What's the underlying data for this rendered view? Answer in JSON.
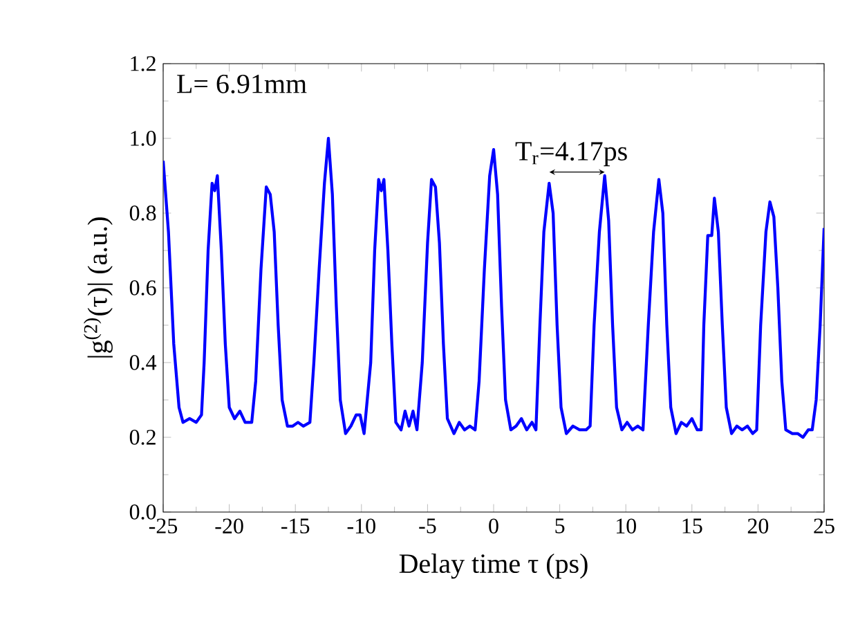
{
  "chart_data": {
    "type": "line",
    "xlabel": "Delay time τ (ps)",
    "ylabel": "|g$^{(2)}$(τ)|  (a.u.)",
    "annotations": [
      "L= 6.91mm",
      {
        "text": "T$_{r}$=4.17ps",
        "x": 8.4,
        "y": 0.9
      }
    ],
    "xlim": [
      -25,
      25
    ],
    "ylim": [
      0,
      1.2
    ],
    "xticks": [
      -25,
      -20,
      -15,
      -10,
      -5,
      0,
      5,
      10,
      15,
      20,
      25
    ],
    "yticks": [
      {
        "value": 0,
        "label": "0.0"
      },
      {
        "value": 0.2,
        "label": "0.2"
      },
      {
        "value": 0.4,
        "label": "0.4"
      },
      {
        "value": 0.6,
        "label": "0.6"
      },
      {
        "value": 0.8,
        "label": "0.8"
      },
      {
        "value": 1.0,
        "label": "1.0"
      },
      {
        "value": 1.2,
        "label": "1.2"
      }
    ],
    "grid": false,
    "marker": "none",
    "line_style": "solid",
    "series": [
      {
        "color": "#0000ff",
        "x": [
          -25,
          -24.6,
          -24.2,
          -23.8,
          -23.5,
          -23.0,
          -22.5,
          -22.1,
          -21.9,
          -21.6,
          -21.3,
          -21.1,
          -20.9,
          -20.6,
          -20.3,
          -20.0,
          -19.6,
          -19.2,
          -18.8,
          -18.3,
          -18.0,
          -17.6,
          -17.2,
          -16.9,
          -16.6,
          -16.3,
          -16.0,
          -15.6,
          -15.2,
          -14.8,
          -14.4,
          -13.9,
          -13.6,
          -13.2,
          -12.8,
          -12.5,
          -12.2,
          -11.9,
          -11.6,
          -11.2,
          -10.8,
          -10.4,
          -10.1,
          -9.8,
          -9.3,
          -9.0,
          -8.7,
          -8.5,
          -8.3,
          -8.0,
          -7.7,
          -7.4,
          -7.0,
          -6.7,
          -6.4,
          -6.1,
          -5.8,
          -5.4,
          -5.0,
          -4.7,
          -4.4,
          -4.1,
          -3.8,
          -3.5,
          -3.0,
          -2.6,
          -2.2,
          -1.8,
          -1.4,
          -1.1,
          -0.7,
          -0.3,
          0,
          0.3,
          0.6,
          0.9,
          1.3,
          1.7,
          2.1,
          2.5,
          2.9,
          3.2,
          3.5,
          3.8,
          4.2,
          4.5,
          4.8,
          5.1,
          5.5,
          6.0,
          6.5,
          7.0,
          7.3,
          7.6,
          8.0,
          8.4,
          8.7,
          9.0,
          9.3,
          9.7,
          10.1,
          10.5,
          10.9,
          11.3,
          11.7,
          12.1,
          12.5,
          12.8,
          13.1,
          13.4,
          13.8,
          14.2,
          14.6,
          15.0,
          15.4,
          15.7,
          15.9,
          16.2,
          16.5,
          16.7,
          17.0,
          17.3,
          17.6,
          18.0,
          18.4,
          18.8,
          19.2,
          19.6,
          19.9,
          20.2,
          20.6,
          20.9,
          21.2,
          21.5,
          21.8,
          22.1,
          22.6,
          23.0,
          23.4,
          23.8,
          24.1,
          24.4,
          24.7,
          25
        ],
        "values": [
          0.94,
          0.75,
          0.45,
          0.28,
          0.24,
          0.25,
          0.24,
          0.26,
          0.4,
          0.7,
          0.88,
          0.86,
          0.9,
          0.7,
          0.45,
          0.28,
          0.25,
          0.27,
          0.24,
          0.24,
          0.35,
          0.65,
          0.87,
          0.85,
          0.75,
          0.5,
          0.3,
          0.23,
          0.23,
          0.24,
          0.23,
          0.24,
          0.4,
          0.65,
          0.88,
          1.0,
          0.85,
          0.55,
          0.3,
          0.21,
          0.23,
          0.26,
          0.26,
          0.21,
          0.4,
          0.7,
          0.89,
          0.86,
          0.89,
          0.7,
          0.45,
          0.24,
          0.22,
          0.27,
          0.23,
          0.27,
          0.22,
          0.4,
          0.72,
          0.89,
          0.87,
          0.72,
          0.45,
          0.25,
          0.21,
          0.24,
          0.22,
          0.23,
          0.22,
          0.35,
          0.65,
          0.9,
          0.97,
          0.85,
          0.55,
          0.3,
          0.22,
          0.23,
          0.25,
          0.22,
          0.24,
          0.22,
          0.5,
          0.75,
          0.88,
          0.8,
          0.5,
          0.28,
          0.21,
          0.23,
          0.22,
          0.22,
          0.23,
          0.5,
          0.75,
          0.9,
          0.78,
          0.5,
          0.28,
          0.22,
          0.24,
          0.22,
          0.23,
          0.22,
          0.5,
          0.75,
          0.89,
          0.8,
          0.5,
          0.28,
          0.21,
          0.24,
          0.23,
          0.25,
          0.22,
          0.22,
          0.5,
          0.74,
          0.74,
          0.84,
          0.75,
          0.5,
          0.28,
          0.21,
          0.23,
          0.22,
          0.23,
          0.21,
          0.22,
          0.5,
          0.75,
          0.83,
          0.79,
          0.6,
          0.35,
          0.22,
          0.21,
          0.21,
          0.2,
          0.22,
          0.22,
          0.3,
          0.5,
          0.76
        ]
      }
    ]
  }
}
